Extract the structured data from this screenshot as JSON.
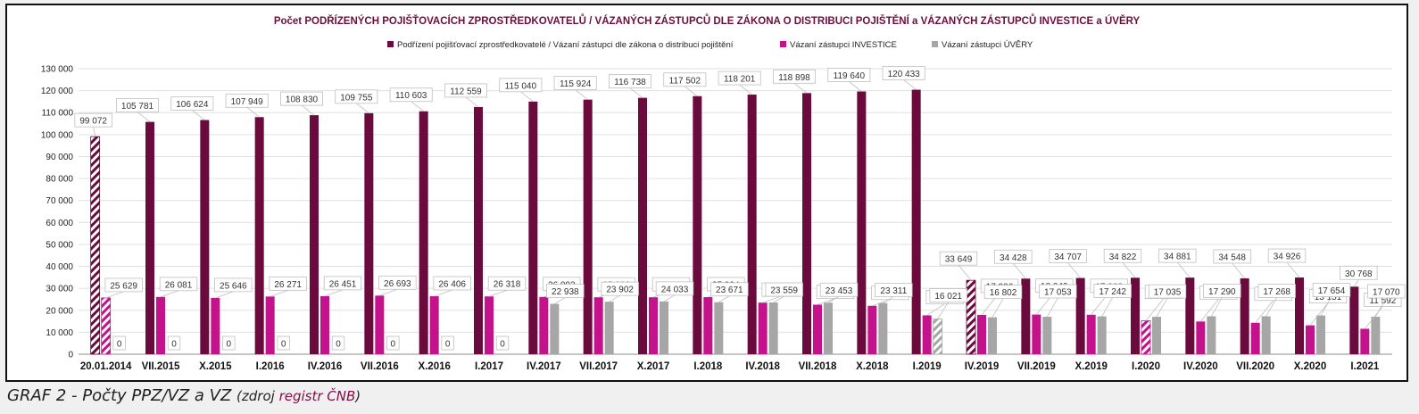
{
  "chart_data": {
    "type": "bar",
    "title": "Počet PODŘÍZENÝCH POJIŠŤOVACÍCH ZPROSTŘEDKOVATELŮ / VÁZANÝCH ZÁSTUPCŮ DLE ZÁKONA O DISTRIBUCI POJIŠTĚNÍ a VÁZANÝCH ZÁSTUPCŮ INVESTICE a ÚVĚRY",
    "legend_position": "top",
    "grid": true,
    "ylim": [
      0,
      130000
    ],
    "yticks": [
      "0",
      "10 000",
      "20 000",
      "30 000",
      "40 000",
      "50 000",
      "60 000",
      "70 000",
      "80 000",
      "90 000",
      "100 000",
      "110 000",
      "120 000",
      "130 000"
    ],
    "categories": [
      "20.01.2014",
      "VII.2015",
      "X.2015",
      "I.2016",
      "IV.2016",
      "VII.2016",
      "X.2016",
      "I.2017",
      "IV.2017",
      "VII.2017",
      "X.2017",
      "I.2018",
      "IV.2018",
      "VII.2018",
      "X.2018",
      "I.2019",
      "IV.2019",
      "VII.2019",
      "X.2019",
      "I.2020",
      "IV.2020",
      "VII.2020",
      "X.2020",
      "I.2021"
    ],
    "series": [
      {
        "name": "Podřízení pojišťovací zprostředkovatelé / Vázaní zástupci dle zákona o distribuci pojištění",
        "color": "#6b0a3c",
        "values": [
          99072,
          105781,
          106624,
          107949,
          108830,
          109755,
          110603,
          112559,
          115040,
          115924,
          116738,
          117502,
          118201,
          118898,
          119640,
          120433,
          33649,
          34428,
          34707,
          34822,
          34881,
          34548,
          34926,
          30768
        ],
        "labels": [
          "99 072",
          "105 781",
          "106 624",
          "107 949",
          "108 830",
          "109 755",
          "110 603",
          "112 559",
          "115 040",
          "115 924",
          "116 738",
          "117 502",
          "118 201",
          "118 898",
          "119 640",
          "120 433",
          "33 649",
          "34 428",
          "34 707",
          "34 822",
          "34 881",
          "34 548",
          "34 926",
          "30 768"
        ],
        "hatched_indices": [
          0,
          16
        ]
      },
      {
        "name": "Vázaní zástupci INVESTICE",
        "color": "#c4128c",
        "values": [
          25629,
          26081,
          25646,
          26271,
          26451,
          26693,
          26406,
          26318,
          26093,
          25923,
          25934,
          25994,
          23481,
          22561,
          22038,
          17691,
          17906,
          18049,
          17968,
          15230,
          14900,
          14308,
          13151,
          11592
        ],
        "labels": [
          "25 629",
          "26 081",
          "25 646",
          "26 271",
          "26 451",
          "26 693",
          "26 406",
          "26 318",
          "26 093",
          "25 923",
          "25 934",
          "25 994",
          "23 481",
          "22 561",
          "22 038",
          "17 691",
          "17 906",
          "18 049",
          "17 968",
          "15 230",
          "14 900",
          "14 308",
          "13 151",
          "11 592"
        ],
        "hatched_indices": [
          0,
          19
        ]
      },
      {
        "name": "Vázaní zástupci ÚVĚRY",
        "color": "#a6a6a6",
        "values": [
          0,
          0,
          0,
          0,
          0,
          0,
          0,
          0,
          22938,
          23902,
          24033,
          23671,
          23559,
          23453,
          23311,
          16021,
          16802,
          17053,
          17242,
          17035,
          17290,
          17268,
          17654,
          17070
        ],
        "labels": [
          "0",
          "0",
          "0",
          "0",
          "0",
          "0",
          "0",
          "0",
          "22 938",
          "23 902",
          "24 033",
          "23 671",
          "23 559",
          "23 453",
          "23 311",
          "16 021",
          "16 802",
          "17 053",
          "17 242",
          "17 035",
          "17 290",
          "17 268",
          "17 654",
          "17 070"
        ],
        "hatched_indices": [
          15
        ]
      }
    ]
  },
  "caption": {
    "main": "GRAF 2 - Počty PPZ/VZ a VZ",
    "source_open": "(zdroj ",
    "source_link": "registr ČNB",
    "source_close": ")"
  }
}
